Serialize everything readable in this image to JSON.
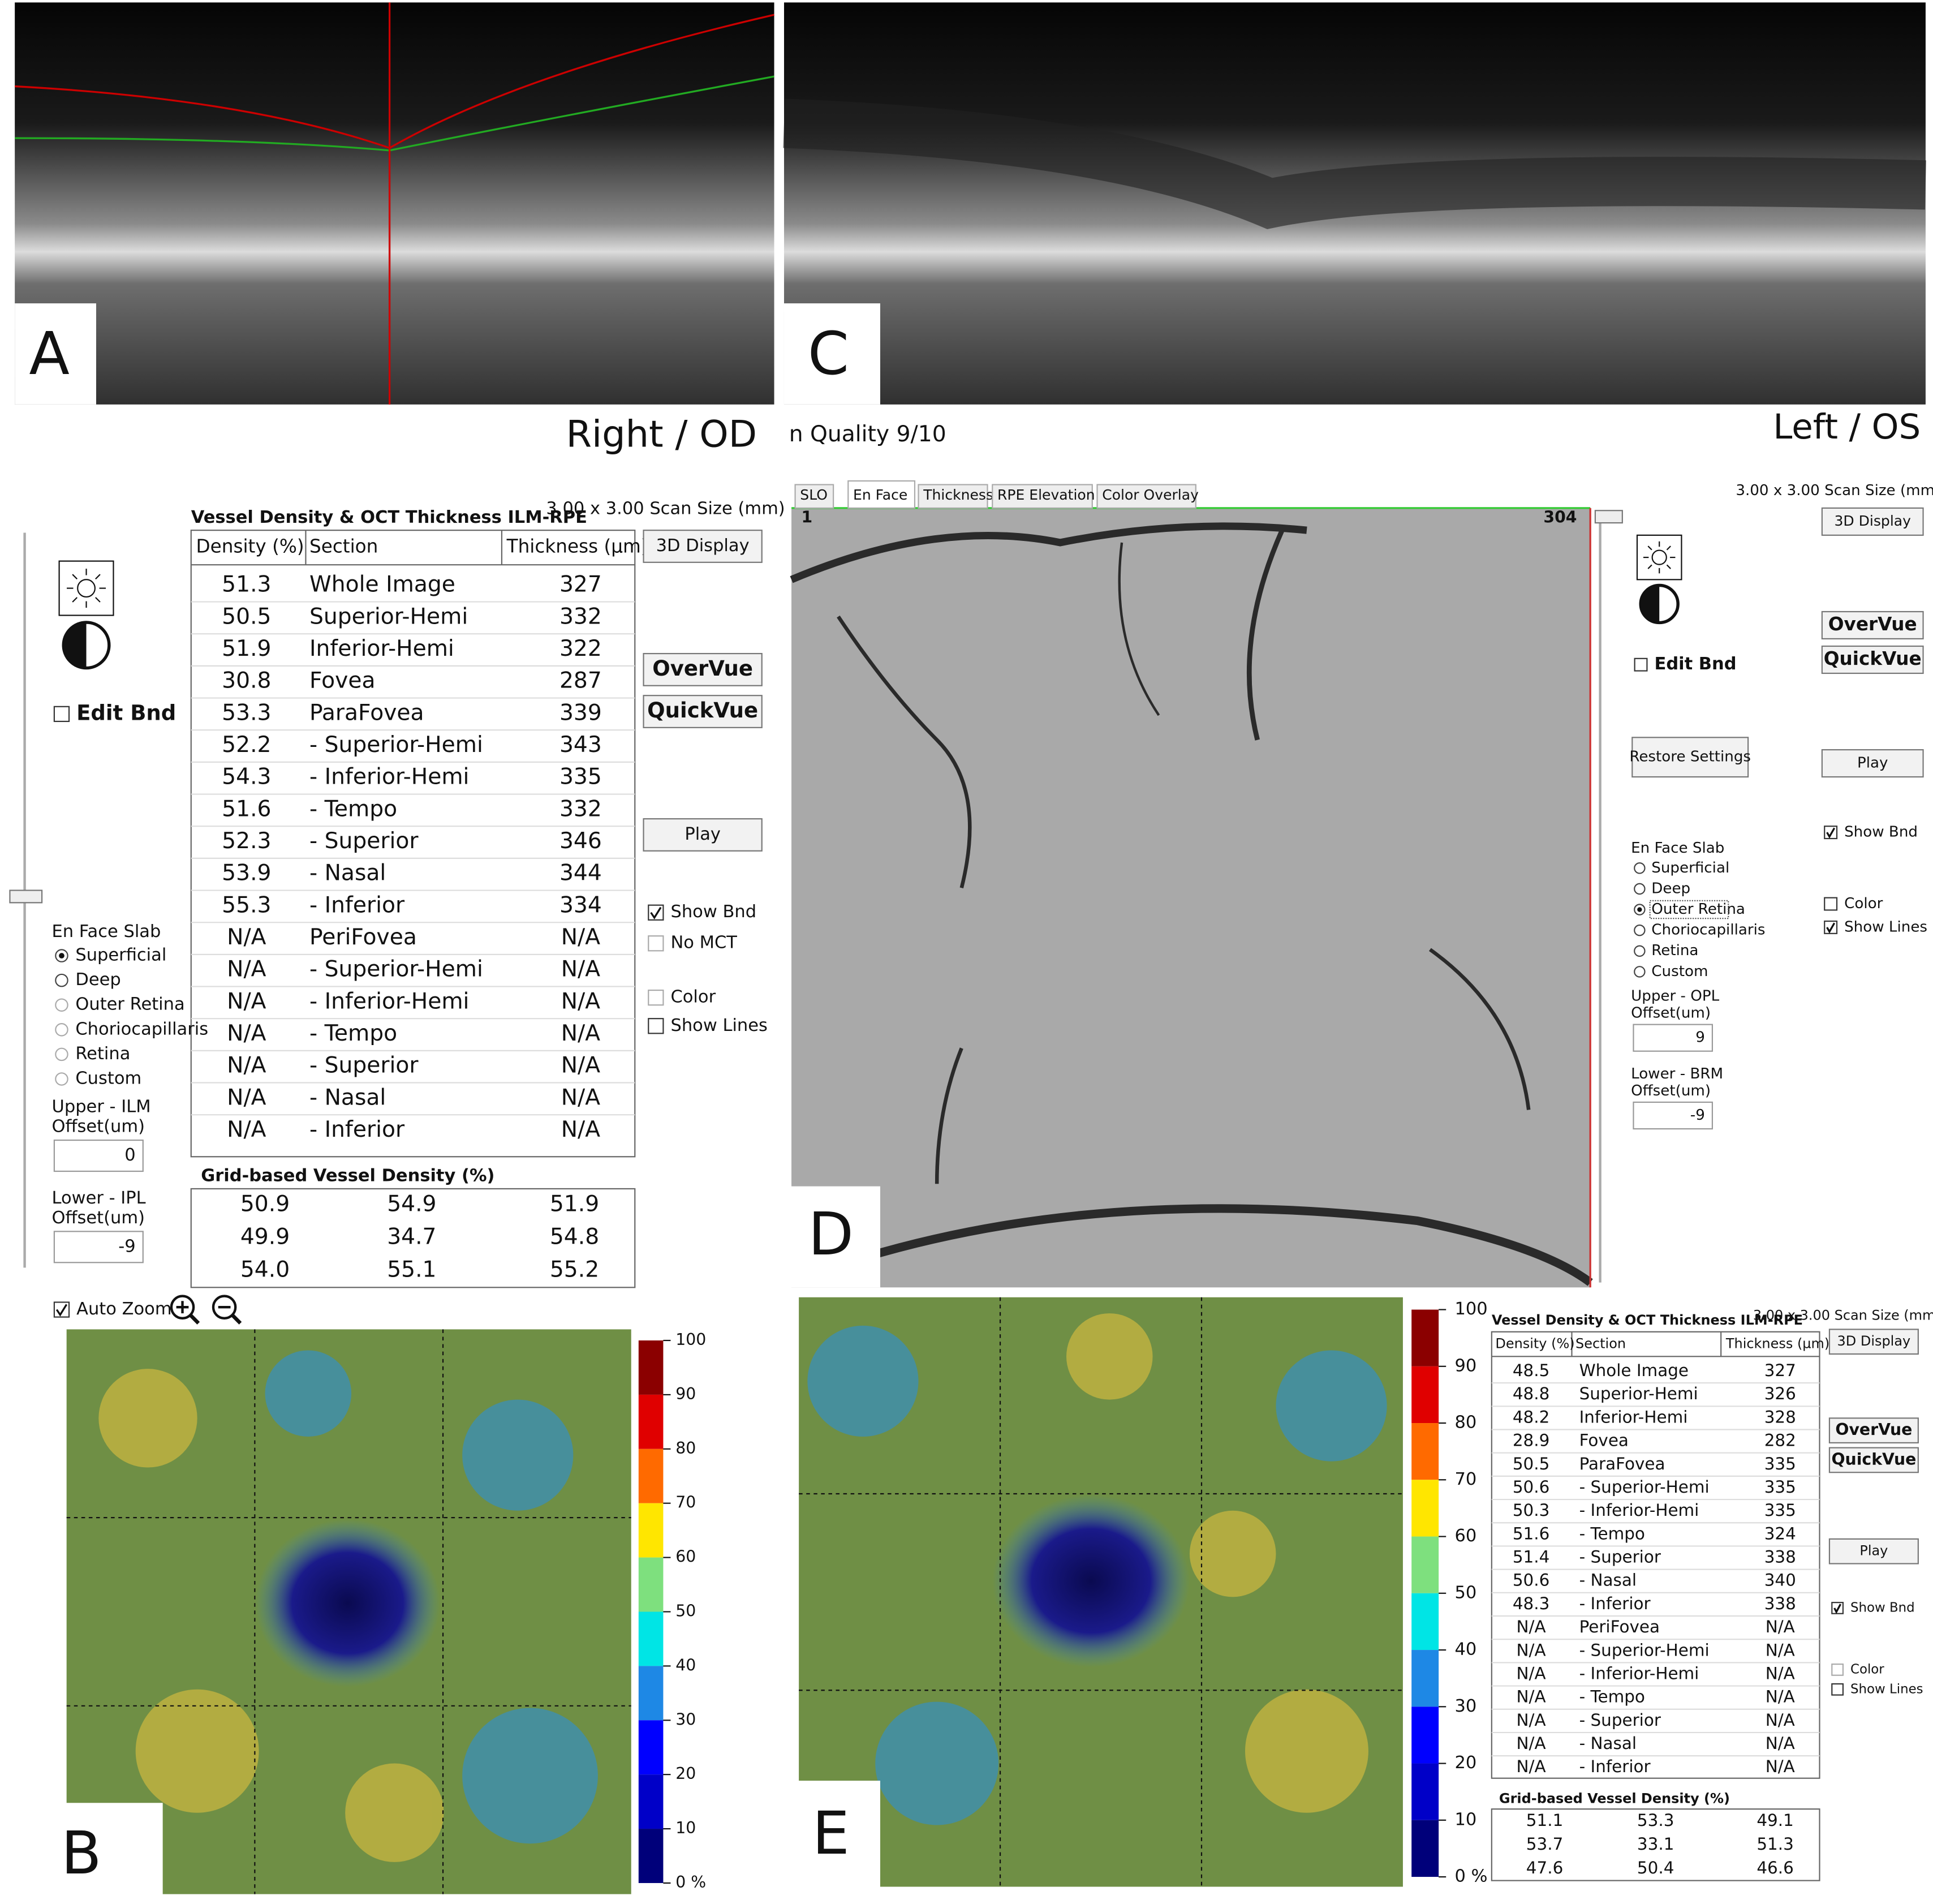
{
  "panel_labels": [
    "A",
    "B",
    "C",
    "D",
    "E"
  ],
  "right_eye": {
    "eye_label": "Right / OD",
    "table_title": "Vessel Density & OCT Thickness ILM-RPE",
    "scan_size": "3.00 x 3.00 Scan Size (mm)",
    "columns": [
      "Density (%)",
      "Section",
      "Thickness (µm)"
    ],
    "rows": [
      [
        "51.3",
        "Whole Image",
        "327"
      ],
      [
        "50.5",
        "Superior-Hemi",
        "332"
      ],
      [
        "51.9",
        "Inferior-Hemi",
        "322"
      ],
      [
        "30.8",
        "Fovea",
        "287"
      ],
      [
        "53.3",
        "ParaFovea",
        "339"
      ],
      [
        "52.2",
        "- Superior-Hemi",
        "343"
      ],
      [
        "54.3",
        "- Inferior-Hemi",
        "335"
      ],
      [
        "51.6",
        "- Tempo",
        "332"
      ],
      [
        "52.3",
        "- Superior",
        "346"
      ],
      [
        "53.9",
        "- Nasal",
        "344"
      ],
      [
        "55.3",
        "- Inferior",
        "334"
      ],
      [
        "N/A",
        "PeriFovea",
        "N/A"
      ],
      [
        "N/A",
        "- Superior-Hemi",
        "N/A"
      ],
      [
        "N/A",
        "- Inferior-Hemi",
        "N/A"
      ],
      [
        "N/A",
        "- Tempo",
        "N/A"
      ],
      [
        "N/A",
        "- Superior",
        "N/A"
      ],
      [
        "N/A",
        "- Nasal",
        "N/A"
      ],
      [
        "N/A",
        "- Inferior",
        "N/A"
      ]
    ],
    "grid_title": "Grid-based Vessel Density (%)",
    "grid": [
      [
        "50.9",
        "54.9",
        "51.9"
      ],
      [
        "49.9",
        "34.7",
        "54.8"
      ],
      [
        "54.0",
        "55.1",
        "55.2"
      ]
    ],
    "buttons": [
      "3D Display",
      "OverVue",
      "QuickVue",
      "Play"
    ],
    "checkboxes": [
      {
        "label": "Show Bnd",
        "checked": true,
        "enabled": true
      },
      {
        "label": "No MCT",
        "checked": false,
        "enabled": false
      },
      {
        "label": "Color",
        "checked": false,
        "enabled": false
      },
      {
        "label": "Show Lines",
        "checked": false,
        "enabled": true
      }
    ],
    "edit_bnd": "Edit Bnd",
    "slab_title": "En Face Slab",
    "slab_options": [
      {
        "label": "Superficial",
        "selected": true,
        "enabled": true
      },
      {
        "label": "Deep",
        "selected": false,
        "enabled": true
      },
      {
        "label": "Outer Retina",
        "selected": false,
        "enabled": false
      },
      {
        "label": "Choriocapillaris",
        "selected": false,
        "enabled": false
      },
      {
        "label": "Retina",
        "selected": false,
        "enabled": false
      },
      {
        "label": "Custom",
        "selected": false,
        "enabled": false
      }
    ],
    "offsets": [
      {
        "label": [
          "Upper - ILM",
          "Offset(um)"
        ],
        "value": "0"
      },
      {
        "label": [
          "Lower - IPL",
          "Offset(um)"
        ],
        "value": "-9"
      }
    ],
    "auto_zoom": "Auto Zoom",
    "colorbar_ticks": [
      "100",
      "90",
      "80",
      "70",
      "60",
      "50",
      "40",
      "30",
      "20",
      "10",
      "0 %"
    ]
  },
  "left_eye": {
    "eye_label": "Left / OS",
    "scan_quality": "n Quality 9/10",
    "tabs": [
      "SLO",
      "En Face",
      "Thickness",
      "RPE Elevation",
      "Color Overlay"
    ],
    "active_tab": 1,
    "frame_start": "1",
    "frame_end": "304",
    "restore_button": "Restore Settings",
    "table_title": "Vessel Density & OCT Thickness ILM-RPE",
    "scan_size": "3.00 x 3.00 Scan Size (mm)",
    "columns": [
      "Density (%)",
      "Section",
      "Thickness (µm)"
    ],
    "rows": [
      [
        "48.5",
        "Whole Image",
        "327"
      ],
      [
        "48.8",
        "Superior-Hemi",
        "326"
      ],
      [
        "48.2",
        "Inferior-Hemi",
        "328"
      ],
      [
        "28.9",
        "Fovea",
        "282"
      ],
      [
        "50.5",
        "ParaFovea",
        "335"
      ],
      [
        "50.6",
        "- Superior-Hemi",
        "335"
      ],
      [
        "50.3",
        "- Inferior-Hemi",
        "335"
      ],
      [
        "51.6",
        "- Tempo",
        "324"
      ],
      [
        "51.4",
        "- Superior",
        "338"
      ],
      [
        "50.6",
        "- Nasal",
        "340"
      ],
      [
        "48.3",
        "- Inferior",
        "338"
      ],
      [
        "N/A",
        "PeriFovea",
        "N/A"
      ],
      [
        "N/A",
        "- Superior-Hemi",
        "N/A"
      ],
      [
        "N/A",
        "- Inferior-Hemi",
        "N/A"
      ],
      [
        "N/A",
        "- Tempo",
        "N/A"
      ],
      [
        "N/A",
        "- Superior",
        "N/A"
      ],
      [
        "N/A",
        "- Nasal",
        "N/A"
      ],
      [
        "N/A",
        "- Inferior",
        "N/A"
      ]
    ],
    "grid_title": "Grid-based Vessel Density (%)",
    "grid": [
      [
        "51.1",
        "53.3",
        "49.1"
      ],
      [
        "53.7",
        "33.1",
        "51.3"
      ],
      [
        "47.6",
        "50.4",
        "46.6"
      ]
    ],
    "buttons": [
      "3D Display",
      "OverVue",
      "QuickVue",
      "Play"
    ],
    "checkboxes": [
      {
        "label": "Show Bnd",
        "checked": true,
        "enabled": true
      },
      {
        "label": "Color",
        "checked": false,
        "enabled": false
      },
      {
        "label": "Show Lines",
        "checked": false,
        "enabled": true
      }
    ],
    "enface_checkboxes": [
      {
        "label": "Show Bnd",
        "checked": true,
        "enabled": true
      },
      {
        "label": "Color",
        "checked": false,
        "enabled": true
      },
      {
        "label": "Show Lines",
        "checked": true,
        "enabled": true
      }
    ],
    "edit_bnd": "Edit Bnd",
    "slab_title": "En Face Slab",
    "slab_options": [
      {
        "label": "Superficial",
        "selected": false,
        "enabled": true
      },
      {
        "label": "Deep",
        "selected": false,
        "enabled": true
      },
      {
        "label": "Outer Retina",
        "selected": true,
        "enabled": true
      },
      {
        "label": "Choriocapillaris",
        "selected": false,
        "enabled": true
      },
      {
        "label": "Retina",
        "selected": false,
        "enabled": true
      },
      {
        "label": "Custom",
        "selected": false,
        "enabled": true
      }
    ],
    "offsets": [
      {
        "label": [
          "Upper - OPL",
          "Offset(um)"
        ],
        "value": "9"
      },
      {
        "label": [
          "Lower - BRM",
          "Offset(um)"
        ],
        "value": "-9"
      }
    ],
    "colorbar_ticks": [
      "100",
      "90",
      "80",
      "70",
      "60",
      "50",
      "40",
      "30",
      "20",
      "10",
      "0 %"
    ]
  }
}
